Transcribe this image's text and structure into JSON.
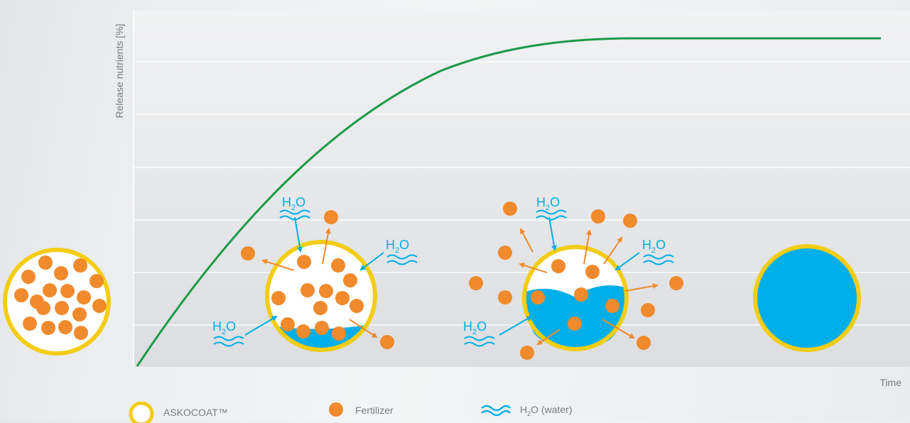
{
  "axes": {
    "ylabel": "Release nutrients [%]",
    "xlabel": "Time"
  },
  "diagram": {
    "labels": {
      "h2o_h": "H",
      "h2o_sub": "2",
      "h2o_o": "O"
    }
  },
  "legend": {
    "items": [
      {
        "key": "coat",
        "label": "ASKOCOAT™",
        "symbol": "yellow-ring-icon"
      },
      {
        "key": "fert",
        "label": "Fertilizer",
        "symbol": "orange-dot-icon"
      },
      {
        "key": "water",
        "label_h": "H",
        "label_sub": "2",
        "label_rest": "O (water)",
        "symbol": "water-waves-icon"
      }
    ]
  },
  "colors": {
    "curve": "#1a9a48",
    "coat": "#f3cd14",
    "fertilizer": "#f08a2c",
    "water": "#00aee8",
    "grid": "#ffffff",
    "text": "#777a80"
  }
}
